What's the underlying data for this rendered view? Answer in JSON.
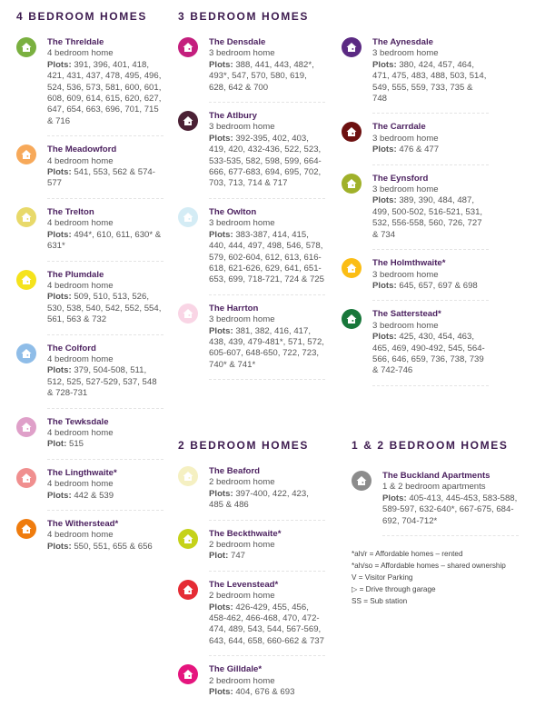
{
  "sections": [
    {
      "heading": "4 BEDROOM HOMES",
      "items": [
        {
          "name": "The Threldale",
          "type": "4 bedroom home",
          "plots_label": "Plots:",
          "plots": "391, 396, 401, 418, 421, 431, 437, 478, 495, 496, 524, 536, 573, 581, 600, 601, 608, 609, 614, 615, 620, 627, 647, 654, 663, 696, 701, 715 & 716",
          "color": "#7ab040"
        },
        {
          "name": "The Meadowford",
          "type": "4 bedroom home",
          "plots_label": "Plots:",
          "plots": "541, 553, 562 & 574-577",
          "color": "#f7a95a"
        },
        {
          "name": "The Trelton",
          "type": "4 bedroom home",
          "plots_label": "Plots:",
          "plots": "494*, 610, 611, 630* & 631*",
          "color": "#e8d96a"
        },
        {
          "name": "The Plumdale",
          "type": "4 bedroom home",
          "plots_label": "Plots:",
          "plots": "509, 510, 513, 526, 530, 538, 540, 542, 552, 554, 561, 563 & 732",
          "color": "#f5e31c"
        },
        {
          "name": "The Colford",
          "type": "4 bedroom home",
          "plots_label": "Plots:",
          "plots": "379, 504-508, 511, 512, 525, 527-529, 537, 548 & 728-731",
          "color": "#8fbde8"
        },
        {
          "name": "The Tewksdale",
          "type": "4 bedroom home",
          "plots_label": "Plot:",
          "plots": "515",
          "color": "#dfa0c9"
        },
        {
          "name": "The Lingthwaite*",
          "type": "4 bedroom home",
          "plots_label": "Plots:",
          "plots": "442 & 539",
          "color": "#f08f8f"
        },
        {
          "name": "The Witherstead*",
          "type": "4 bedroom home",
          "plots_label": "Plots:",
          "plots": "550, 551, 655 & 656",
          "color": "#ef7c0e"
        }
      ]
    },
    {
      "heading": "3 BEDROOM HOMES",
      "items": [
        {
          "name": "The Densdale",
          "type": "3 bedroom home",
          "plots_label": "Plots:",
          "plots": "388, 441, 443, 482*, 493*, 547, 570, 580, 619, 628, 642 & 700",
          "color": "#c41f7e"
        },
        {
          "name": "The Atlbury",
          "type": "3 bedroom home",
          "plots_label": "Plots:",
          "plots": "392-395, 402, 403, 419, 420, 432-436, 522, 523, 533-535, 582, 598, 599, 664-666, 677-683, 694, 695, 702, 703, 713, 714 & 717",
          "color": "#4b2135"
        },
        {
          "name": "The Owlton",
          "type": "3 bedroom home",
          "plots_label": "Plots:",
          "plots": "383-387, 414, 415, 440, 444, 497, 498, 546, 578, 579, 602-604, 612, 613, 616-618, 621-626, 629, 641, 651-653, 699, 718-721, 724 & 725",
          "color": "#d4ecf5"
        },
        {
          "name": "The Harrton",
          "type": "3 bedroom home",
          "plots_label": "Plots:",
          "plots": "381, 382, 416, 417, 438, 439, 479-481*, 571, 572, 605-607, 648-650, 722, 723, 740* & 741*",
          "color": "#f9d5e5"
        }
      ]
    },
    {
      "heading": "",
      "items": [
        {
          "name": "The Aynesdale",
          "type": "3 bedroom home",
          "plots_label": "Plots:",
          "plots": "380, 424, 457, 464, 471, 475, 483, 488, 503, 514, 549, 555, 559, 733, 735 & 748",
          "color": "#5b2a83"
        },
        {
          "name": "The Carrdale",
          "type": "3 bedroom home",
          "plots_label": "Plots:",
          "plots": "476 & 477",
          "color": "#6d1010"
        },
        {
          "name": "The Eynsford",
          "type": "3 bedroom home",
          "plots_label": "Plots:",
          "plots": "389, 390, 484, 487, 499, 500-502, 516-521, 531, 532, 556-558, 560, 726, 727 & 734",
          "color": "#a0b12a"
        },
        {
          "name": "The Holmthwaite*",
          "type": "3 bedroom home",
          "plots_label": "Plots:",
          "plots": "645, 657, 697 & 698",
          "color": "#fbbd14"
        },
        {
          "name": "The Satterstead*",
          "type": "3 bedroom home",
          "plots_label": "Plots:",
          "plots": "425, 430, 454, 463, 465, 469, 490-492, 545, 564-566, 646, 659, 736, 738, 739 & 742-746",
          "color": "#18773a"
        }
      ]
    },
    {
      "heading": "2 BEDROOM HOMES",
      "items": [
        {
          "name": "The Beaford",
          "type": "2 bedroom home",
          "plots_label": "Plots:",
          "plots": "397-400, 422, 423, 485 & 486",
          "color": "#f5f0c2"
        },
        {
          "name": "The Beckthwaite*",
          "type": "2 bedroom home",
          "plots_label": "Plot:",
          "plots": "747",
          "color": "#c5d219"
        },
        {
          "name": "The Levenstead*",
          "type": "2 bedroom home",
          "plots_label": "Plots:",
          "plots": "426-429, 455, 456, 458-462, 466-468, 470, 472-474, 489, 543, 544, 567-569, 643, 644, 658, 660-662 & 737",
          "color": "#e52c35"
        },
        {
          "name": "The Gilldale*",
          "type": "2 bedroom home",
          "plots_label": "Plots:",
          "plots": "404, 676 & 693",
          "color": "#e5157e"
        }
      ]
    },
    {
      "heading": "1 & 2 BEDROOM HOMES",
      "items": [
        {
          "name": "The Buckland Apartments",
          "type": "1 & 2 bedroom apartments",
          "plots_label": "Plots:",
          "plots": "405-413, 445-453, 583-588, 589-597, 632-640*, 667-675, 684-692, 704-712*",
          "color": "#8c8c8c"
        }
      ]
    }
  ],
  "legend": [
    "*ah/r = Affordable homes – rented",
    "*ah/so = Affordable homes – shared ownership",
    "V = Visitor Parking",
    "▷ = Drive through garage",
    "SS = Sub station"
  ]
}
